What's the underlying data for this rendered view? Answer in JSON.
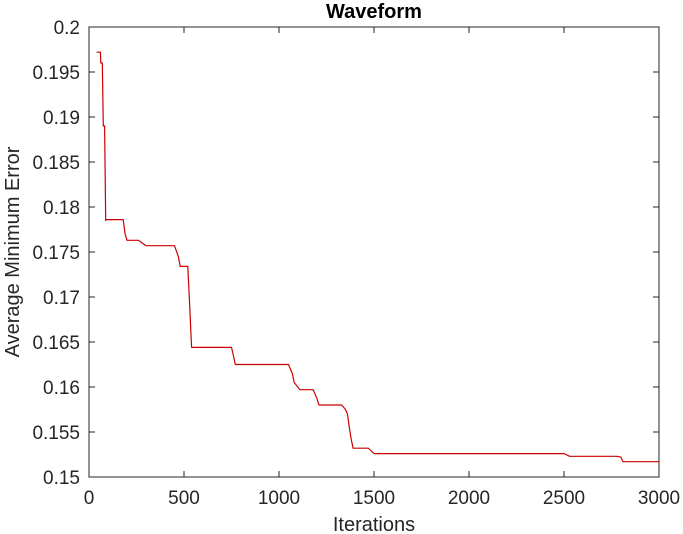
{
  "chart_data": {
    "type": "line",
    "title": "Waveform",
    "xlabel": "Iterations",
    "ylabel": "Average Minimum Error",
    "xlim": [
      0,
      3000
    ],
    "ylim": [
      0.15,
      0.2
    ],
    "xticks": [
      0,
      500,
      1000,
      1500,
      2000,
      2500,
      3000
    ],
    "xtick_labels": [
      "0",
      "500",
      "1000",
      "1500",
      "2000",
      "2500",
      "3000"
    ],
    "yticks": [
      0.15,
      0.155,
      0.16,
      0.165,
      0.17,
      0.175,
      0.18,
      0.185,
      0.19,
      0.195,
      0.2
    ],
    "ytick_labels": [
      "0.15",
      "0.155",
      "0.16",
      "0.165",
      "0.17",
      "0.175",
      "0.18",
      "0.185",
      "0.19",
      "0.195",
      "0.2"
    ],
    "grid": false,
    "series": [
      {
        "color": "#cc0000",
        "x": [
          40,
          60,
          62,
          70,
          75,
          82,
          88,
          90,
          180,
          190,
          200,
          260,
          280,
          300,
          450,
          470,
          480,
          500,
          520,
          530,
          535,
          540,
          750,
          760,
          770,
          1050,
          1070,
          1080,
          1110,
          1120,
          1180,
          1200,
          1210,
          1330,
          1350,
          1360,
          1370,
          1380,
          1390,
          1470,
          1480,
          1500,
          2500,
          2520,
          2530,
          2780,
          2800,
          2810,
          3000
        ],
        "y": [
          0.1972,
          0.1972,
          0.196,
          0.196,
          0.189,
          0.189,
          0.1785,
          0.1786,
          0.1786,
          0.177,
          0.1763,
          0.1763,
          0.176,
          0.1757,
          0.1757,
          0.1745,
          0.1734,
          0.1734,
          0.1734,
          0.169,
          0.1665,
          0.1644,
          0.1644,
          0.1635,
          0.1625,
          0.1625,
          0.1615,
          0.1605,
          0.1597,
          0.1597,
          0.1597,
          0.1587,
          0.158,
          0.158,
          0.1575,
          0.157,
          0.1555,
          0.1542,
          0.1532,
          0.1532,
          0.153,
          0.1526,
          0.1526,
          0.1524,
          0.1523,
          0.1523,
          0.1522,
          0.1517,
          0.1517
        ]
      }
    ]
  }
}
